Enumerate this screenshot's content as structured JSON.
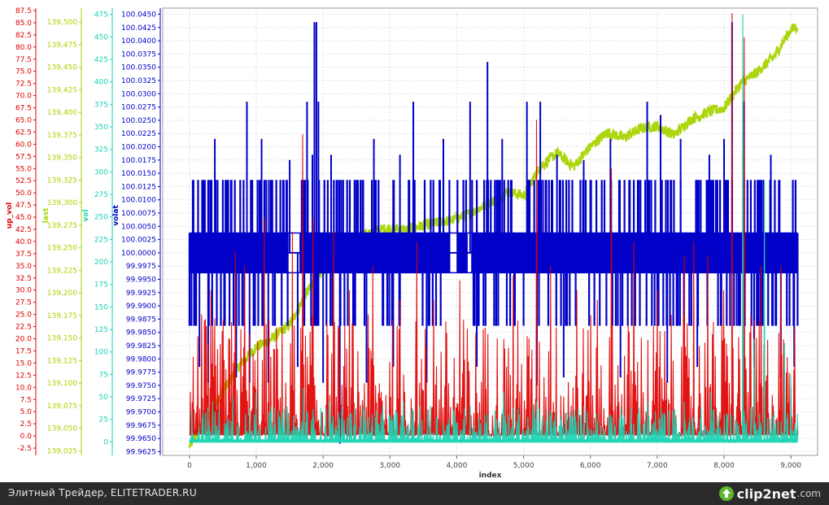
{
  "chart_data": {
    "type": "line",
    "xlabel": "index",
    "xlim": [
      -400,
      9400
    ],
    "x_ticks": [
      0,
      1000,
      2000,
      3000,
      4000,
      5000,
      6000,
      7000,
      8000,
      9000
    ],
    "x_tick_labels": [
      "0",
      "1,000",
      "2,000",
      "3,000",
      "4,000",
      "5,000",
      "6,000",
      "7,000",
      "8,000",
      "9,000"
    ],
    "axes": [
      {
        "label": "up_vol",
        "color": "#e00000",
        "range": [
          -4.0,
          88.0
        ],
        "tick_labels": [
          "-2.5",
          "0.0",
          "2.5",
          "5.0",
          "7.5",
          "10.0",
          "12.5",
          "15.0",
          "17.5",
          "20.0",
          "22.5",
          "25.0",
          "27.5",
          "30.0",
          "32.5",
          "35.0",
          "37.5",
          "40.0",
          "42.5",
          "45.0",
          "47.5",
          "50.0",
          "52.5",
          "55.0",
          "57.5",
          "60.0",
          "62.5",
          "65.0",
          "67.5",
          "70.0",
          "72.5",
          "75.0",
          "77.5",
          "80.0",
          "82.5",
          "85.0",
          "87.5"
        ]
      },
      {
        "label": "last",
        "color": "#a8d400",
        "range": [
          139.02,
          139.5155
        ],
        "tick_labels": [
          "139,025",
          "139,050",
          "139,075",
          "139,100",
          "139,125",
          "139,150",
          "139,175",
          "139,200",
          "139,225",
          "139,250",
          "139,275",
          "139,300",
          "139,325",
          "139,350",
          "139,375",
          "139,400",
          "139,425",
          "139,450",
          "139,475",
          "139,500"
        ]
      },
      {
        "label": "vol",
        "color": "#1ad4b4",
        "range": [
          -15.0,
          482.0
        ],
        "tick_labels": [
          "0",
          "25",
          "50",
          "75",
          "100",
          "125",
          "150",
          "175",
          "200",
          "225",
          "250",
          "275",
          "300",
          "325",
          "350",
          "375",
          "400",
          "425",
          "450",
          "475"
        ]
      },
      {
        "label": "volat",
        "color": "#0000c8",
        "range": [
          99.9618,
          100.04615
        ],
        "tick_labels": [
          "99.9625",
          "99.9650",
          "99.9675",
          "99.9700",
          "99.9725",
          "99.9750",
          "99.9775",
          "99.9800",
          "99.9825",
          "99.9850",
          "99.9875",
          "99.9900",
          "99.9925",
          "99.9950",
          "99.9975",
          "100.0000",
          "100.0025",
          "100.0050",
          "100.0075",
          "100.0100",
          "100.0125",
          "100.0150",
          "100.0175",
          "100.0200",
          "100.0225",
          "100.0250",
          "100.0275",
          "100.0300",
          "100.0325",
          "100.0350",
          "100.0375",
          "100.0400",
          "100.0425",
          "100.0450"
        ]
      }
    ],
    "series": [
      {
        "name": "last",
        "axis": 1,
        "color": "#a8d400",
        "x": [
          0,
          250,
          500,
          750,
          1000,
          1250,
          1500,
          1750,
          2000,
          2250,
          2500,
          2750,
          3000,
          3250,
          3500,
          3750,
          4000,
          4250,
          4500,
          4750,
          5000,
          5250,
          5500,
          5750,
          6000,
          6250,
          6500,
          6750,
          7000,
          7250,
          7500,
          7750,
          8000,
          8250,
          8500,
          8750,
          9000,
          9100
        ],
        "y": [
          139.03,
          139.06,
          139.09,
          139.12,
          139.14,
          139.15,
          139.165,
          139.2,
          139.225,
          139.245,
          139.26,
          139.268,
          139.272,
          139.27,
          139.275,
          139.278,
          139.282,
          139.29,
          139.3,
          139.312,
          139.308,
          139.34,
          139.355,
          139.34,
          139.362,
          139.378,
          139.372,
          139.382,
          139.385,
          139.375,
          139.392,
          139.4,
          139.405,
          139.432,
          139.445,
          139.462,
          139.492,
          139.495
        ]
      },
      {
        "name": "volat",
        "axis": 3,
        "color": "#0000c8",
        "baseline": 100.0,
        "band_levels": [
          99.99625,
          100.00375
        ],
        "band_outer": [
          99.98625,
          100.01375
        ],
        "spikes": [
          [
            380,
            100.0215
          ],
          [
            860,
            100.0285
          ],
          [
            1080,
            100.0215
          ],
          [
            1500,
            100.0175
          ],
          [
            1760,
            100.0285
          ],
          [
            1840,
            100.0185
          ],
          [
            1870,
            100.0435
          ],
          [
            1900,
            100.0435
          ],
          [
            1930,
            100.0285
          ],
          [
            2120,
            100.0185
          ],
          [
            2760,
            100.0215
          ],
          [
            3150,
            100.0185
          ],
          [
            3350,
            100.0285
          ],
          [
            3800,
            100.0215
          ],
          [
            4200,
            100.0285
          ],
          [
            4460,
            100.036
          ],
          [
            4680,
            100.0215
          ],
          [
            5050,
            100.0285
          ],
          [
            5250,
            100.0285
          ],
          [
            5500,
            100.0185
          ],
          [
            5900,
            100.0175
          ],
          [
            6300,
            100.0215
          ],
          [
            6850,
            100.0285
          ],
          [
            7050,
            100.026
          ],
          [
            7350,
            100.0215
          ],
          [
            7780,
            100.0185
          ],
          [
            8000,
            100.0215
          ],
          [
            8120,
            100.0435
          ],
          [
            8300,
            100.0285
          ],
          [
            8700,
            100.0185
          ],
          [
            150,
            99.9785
          ],
          [
            280,
            99.9755
          ],
          [
            700,
            99.9765
          ],
          [
            900,
            99.9755
          ],
          [
            1180,
            99.9755
          ],
          [
            1620,
            99.9785
          ],
          [
            2000,
            99.9755
          ],
          [
            2250,
            99.964
          ],
          [
            2650,
            99.9755
          ],
          [
            3050,
            99.9785
          ],
          [
            3550,
            99.9755
          ],
          [
            4300,
            99.9785
          ],
          [
            5200,
            99.975
          ],
          [
            5600,
            99.9765
          ],
          [
            6450,
            99.9765
          ],
          [
            7150,
            99.9755
          ],
          [
            7600,
            99.9785
          ],
          [
            8450,
            99.9785
          ],
          [
            8850,
            99.9765
          ],
          [
            9050,
            99.9785
          ]
        ]
      },
      {
        "name": "up_vol",
        "axis": 0,
        "color": "#e00000",
        "typical_max": 25,
        "spikes": [
          [
            180,
            25
          ],
          [
            320,
            30
          ],
          [
            680,
            38
          ],
          [
            820,
            35
          ],
          [
            1120,
            45
          ],
          [
            1540,
            42
          ],
          [
            1700,
            62
          ],
          [
            1850,
            45
          ],
          [
            2150,
            42
          ],
          [
            2400,
            30
          ],
          [
            2750,
            35
          ],
          [
            3150,
            28
          ],
          [
            3400,
            40
          ],
          [
            3650,
            28
          ],
          [
            4050,
            32
          ],
          [
            4400,
            22
          ],
          [
            4850,
            33
          ],
          [
            5200,
            65
          ],
          [
            5400,
            35
          ],
          [
            5800,
            30
          ],
          [
            6100,
            28
          ],
          [
            6320,
            55
          ],
          [
            6650,
            40
          ],
          [
            7000,
            30
          ],
          [
            7400,
            37
          ],
          [
            7550,
            40
          ],
          [
            7750,
            37
          ],
          [
            8000,
            30
          ],
          [
            8120,
            87
          ],
          [
            8300,
            82
          ],
          [
            8550,
            35
          ],
          [
            8850,
            35
          ],
          [
            9000,
            10
          ]
        ]
      },
      {
        "name": "vol",
        "axis": 2,
        "color": "#1ad4b4",
        "typical_max": 40,
        "spikes": [
          [
            350,
            45
          ],
          [
            650,
            50
          ],
          [
            1000,
            55
          ],
          [
            1350,
            45
          ],
          [
            1700,
            60
          ],
          [
            2100,
            45
          ],
          [
            2600,
            40
          ],
          [
            3200,
            45
          ],
          [
            3600,
            40
          ],
          [
            4200,
            40
          ],
          [
            4700,
            55
          ],
          [
            5200,
            45
          ],
          [
            5900,
            40
          ],
          [
            6300,
            30
          ],
          [
            6850,
            45
          ],
          [
            7050,
            50
          ],
          [
            7400,
            45
          ],
          [
            7800,
            55
          ],
          [
            8280,
            475
          ],
          [
            8450,
            115
          ],
          [
            8600,
            290
          ],
          [
            8900,
            110
          ],
          [
            9000,
            75
          ]
        ]
      }
    ]
  },
  "footer": {
    "text": "Элитный Трейдер, ELITETRADER.RU",
    "brand": "clip2net",
    "brand_suffix": ".com"
  }
}
